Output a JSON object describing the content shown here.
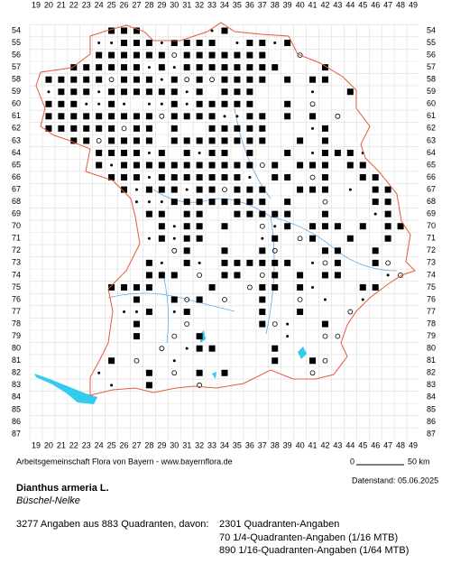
{
  "grid": {
    "columns": [
      19,
      20,
      21,
      22,
      23,
      24,
      25,
      26,
      27,
      28,
      29,
      30,
      31,
      32,
      33,
      34,
      35,
      36,
      37,
      38,
      39,
      40,
      41,
      42,
      43,
      44,
      45,
      46,
      47,
      48,
      49
    ],
    "rows": [
      54,
      55,
      56,
      57,
      58,
      59,
      60,
      61,
      62,
      63,
      64,
      65,
      66,
      67,
      68,
      69,
      70,
      71,
      72,
      73,
      74,
      75,
      76,
      77,
      78,
      79,
      80,
      81,
      82,
      83,
      84,
      85,
      86,
      87
    ]
  },
  "credit": "Arbeitsgemeinschaft Flora von Bayern - www.bayernflora.de",
  "scale": {
    "start": "0",
    "end": "50 km"
  },
  "date": "Datenstand: 05.06.2025",
  "species": {
    "name": "Dianthus armeria L.",
    "common_name": "Büschel-Nelke"
  },
  "summary": {
    "total": "3277 Angaben aus 883 Quadranten, davon:",
    "lines": [
      "2301 Quadranten-Angaben",
      "70 1/4-Quadranten-Angaben (1/16 MTB)",
      "890 1/16-Quadranten-Angaben (1/64 MTB)"
    ]
  }
}
